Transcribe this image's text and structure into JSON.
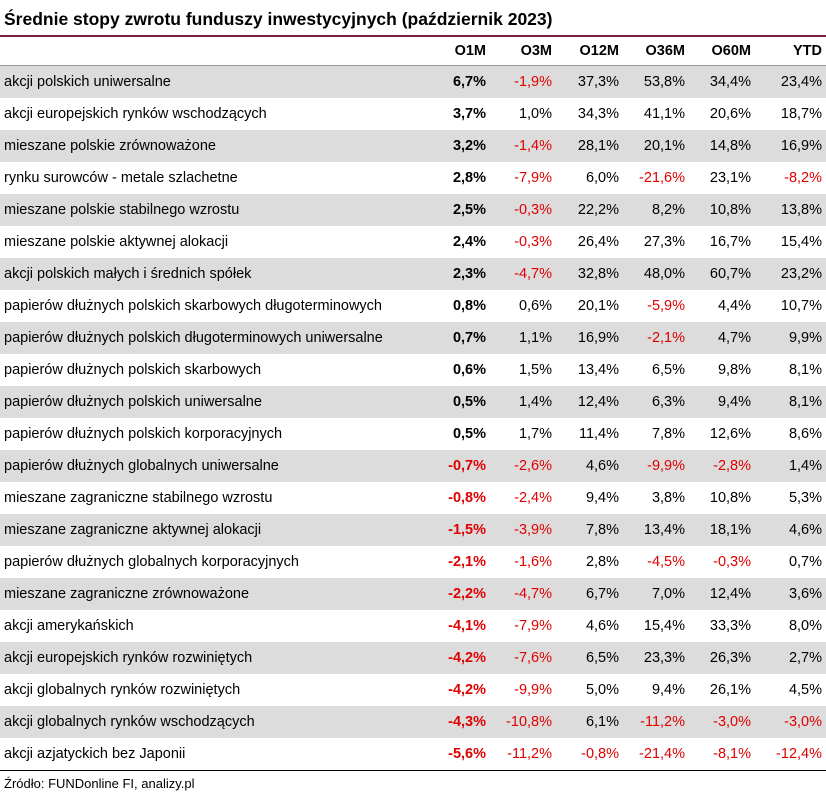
{
  "title": "Średnie stopy zwrotu funduszy inwestycyjnych (październik 2023)",
  "columns": [
    "O1M",
    "O3M",
    "O12M",
    "O36M",
    "O60M",
    "YTD"
  ],
  "colors": {
    "negative": "#e00000",
    "stripe": "#dcdcdc",
    "title_rule": "#7a1f3d"
  },
  "rows": [
    {
      "name": "akcji polskich uniwersalne",
      "values": [
        "6,7%",
        "-1,9%",
        "37,3%",
        "53,8%",
        "34,4%",
        "23,4%"
      ]
    },
    {
      "name": "akcji europejskich rynków wschodzących",
      "values": [
        "3,7%",
        "1,0%",
        "34,3%",
        "41,1%",
        "20,6%",
        "18,7%"
      ]
    },
    {
      "name": "mieszane polskie zrównoważone",
      "values": [
        "3,2%",
        "-1,4%",
        "28,1%",
        "20,1%",
        "14,8%",
        "16,9%"
      ]
    },
    {
      "name": "rynku surowców - metale szlachetne",
      "values": [
        "2,8%",
        "-7,9%",
        "6,0%",
        "-21,6%",
        "23,1%",
        "-8,2%"
      ]
    },
    {
      "name": "mieszane polskie stabilnego wzrostu",
      "values": [
        "2,5%",
        "-0,3%",
        "22,2%",
        "8,2%",
        "10,8%",
        "13,8%"
      ]
    },
    {
      "name": "mieszane polskie aktywnej alokacji",
      "values": [
        "2,4%",
        "-0,3%",
        "26,4%",
        "27,3%",
        "16,7%",
        "15,4%"
      ]
    },
    {
      "name": "akcji polskich małych i średnich spółek",
      "values": [
        "2,3%",
        "-4,7%",
        "32,8%",
        "48,0%",
        "60,7%",
        "23,2%"
      ]
    },
    {
      "name": "papierów dłużnych polskich skarbowych długoterminowych",
      "values": [
        "0,8%",
        "0,6%",
        "20,1%",
        "-5,9%",
        "4,4%",
        "10,7%"
      ]
    },
    {
      "name": "papierów dłużnych polskich długoterminowych uniwersalne",
      "values": [
        "0,7%",
        "1,1%",
        "16,9%",
        "-2,1%",
        "4,7%",
        "9,9%"
      ]
    },
    {
      "name": "papierów dłużnych polskich skarbowych",
      "values": [
        "0,6%",
        "1,5%",
        "13,4%",
        "6,5%",
        "9,8%",
        "8,1%"
      ]
    },
    {
      "name": "papierów dłużnych polskich uniwersalne",
      "values": [
        "0,5%",
        "1,4%",
        "12,4%",
        "6,3%",
        "9,4%",
        "8,1%"
      ]
    },
    {
      "name": "papierów dłużnych polskich korporacyjnych",
      "values": [
        "0,5%",
        "1,7%",
        "11,4%",
        "7,8%",
        "12,6%",
        "8,6%"
      ]
    },
    {
      "name": "papierów dłużnych globalnych uniwersalne",
      "values": [
        "-0,7%",
        "-2,6%",
        "4,6%",
        "-9,9%",
        "-2,8%",
        "1,4%"
      ]
    },
    {
      "name": "mieszane zagraniczne stabilnego wzrostu",
      "values": [
        "-0,8%",
        "-2,4%",
        "9,4%",
        "3,8%",
        "10,8%",
        "5,3%"
      ]
    },
    {
      "name": "mieszane zagraniczne aktywnej alokacji",
      "values": [
        "-1,5%",
        "-3,9%",
        "7,8%",
        "13,4%",
        "18,1%",
        "4,6%"
      ]
    },
    {
      "name": "papierów dłużnych globalnych korporacyjnych",
      "values": [
        "-2,1%",
        "-1,6%",
        "2,8%",
        "-4,5%",
        "-0,3%",
        "0,7%"
      ]
    },
    {
      "name": "mieszane zagraniczne zrównoważone",
      "values": [
        "-2,2%",
        "-4,7%",
        "6,7%",
        "7,0%",
        "12,4%",
        "3,6%"
      ]
    },
    {
      "name": "akcji amerykańskich",
      "values": [
        "-4,1%",
        "-7,9%",
        "4,6%",
        "15,4%",
        "33,3%",
        "8,0%"
      ]
    },
    {
      "name": "akcji europejskich rynków rozwiniętych",
      "values": [
        "-4,2%",
        "-7,6%",
        "6,5%",
        "23,3%",
        "26,3%",
        "2,7%"
      ]
    },
    {
      "name": "akcji globalnych rynków rozwiniętych",
      "values": [
        "-4,2%",
        "-9,9%",
        "5,0%",
        "9,4%",
        "26,1%",
        "4,5%"
      ]
    },
    {
      "name": "akcji globalnych rynków wschodzących",
      "values": [
        "-4,3%",
        "-10,8%",
        "6,1%",
        "-11,2%",
        "-3,0%",
        "-3,0%"
      ]
    },
    {
      "name": "akcji azjatyckich bez Japonii",
      "values": [
        "-5,6%",
        "-11,2%",
        "-0,8%",
        "-21,4%",
        "-8,1%",
        "-12,4%"
      ]
    }
  ],
  "source": "Źródło: FUNDonline FI, analizy.pl"
}
